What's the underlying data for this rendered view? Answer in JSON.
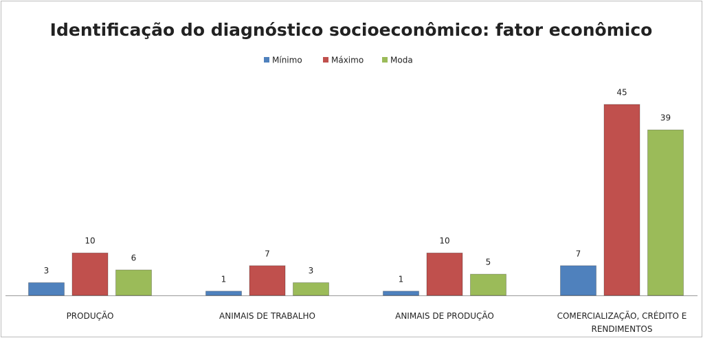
{
  "chart_data": {
    "type": "bar",
    "title": "Identificação do diagnóstico socioeconômico: fator econômico",
    "categories": [
      "PRODUÇÃO",
      "ANIMAIS DE TRABALHO",
      "ANIMAIS DE PRODUÇÃO",
      "COMERCIALIZAÇÃO, CRÉDITO E RENDIMENTOS"
    ],
    "series": [
      {
        "name": "Mínimo",
        "color": "#4f81bd",
        "values": [
          3,
          1,
          1,
          7
        ]
      },
      {
        "name": "Máximo",
        "color": "#c0504d",
        "values": [
          10,
          7,
          10,
          45
        ]
      },
      {
        "name": "Moda",
        "color": "#9bbb59",
        "values": [
          6,
          3,
          5,
          39
        ]
      }
    ],
    "legend": "top"
  }
}
